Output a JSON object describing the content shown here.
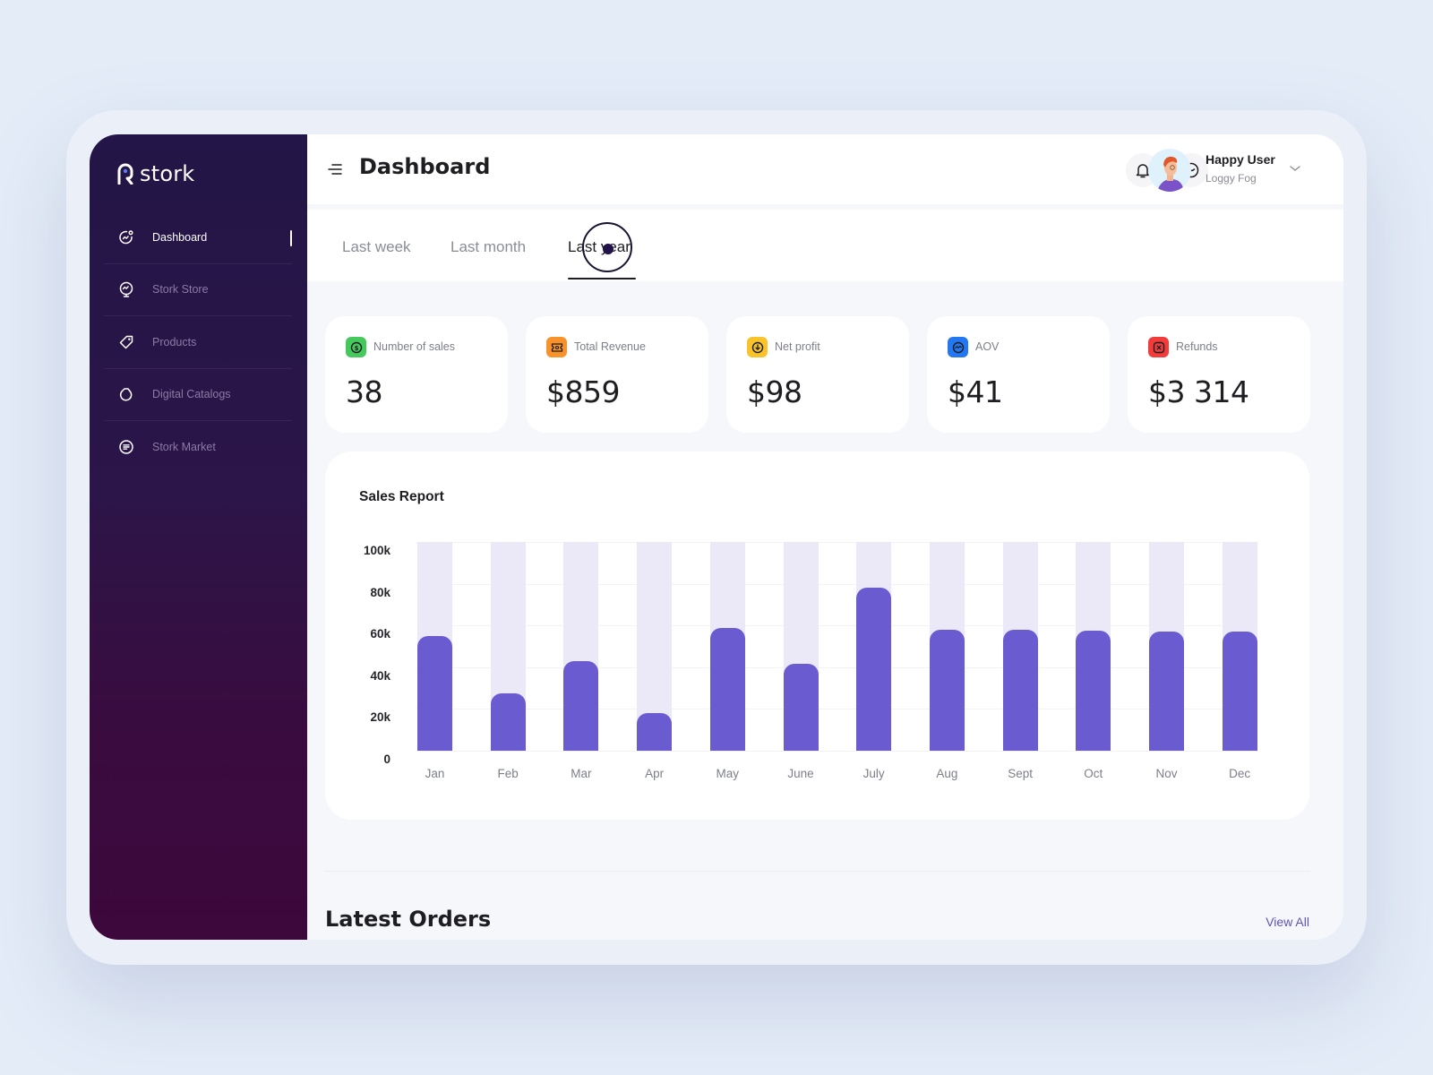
{
  "app": {
    "name": "stork"
  },
  "sidebar": {
    "items": [
      {
        "label": "Dashboard",
        "icon": "chart-face-icon",
        "active": true
      },
      {
        "label": "Stork Store",
        "icon": "monitor-chart-icon",
        "active": false
      },
      {
        "label": "Products",
        "icon": "tag-icon",
        "active": false
      },
      {
        "label": "Digital Catalogs",
        "icon": "catalog-icon",
        "active": false
      },
      {
        "label": "Stork Market",
        "icon": "list-circle-icon",
        "active": false
      }
    ]
  },
  "header": {
    "title": "Dashboard",
    "user": {
      "name": "Happy User",
      "subtitle": "Loggy Fog"
    }
  },
  "tabs": [
    {
      "label": "Last week",
      "active": false
    },
    {
      "label": "Last month",
      "active": false
    },
    {
      "label": "Last year",
      "active": true
    }
  ],
  "stats": [
    {
      "label": "Number of sales",
      "value": "38",
      "color": "#46c95c",
      "icon": "dollar-coin-icon"
    },
    {
      "label": "Total Revenue",
      "value": "$859",
      "color": "#f7932a",
      "icon": "ticket-icon"
    },
    {
      "label": "Net profit",
      "value": "$98",
      "color": "#f9c42b",
      "icon": "download-circle-icon"
    },
    {
      "label": "AOV",
      "value": "$41",
      "color": "#2377f0",
      "icon": "pulse-circle-icon"
    },
    {
      "label": "Refunds",
      "value": "$3 314",
      "color": "#f23b3b",
      "icon": "close-square-icon"
    }
  ],
  "chart_data": {
    "type": "bar",
    "title": "Sales Report",
    "categories": [
      "Jan",
      "Feb",
      "Mar",
      "Apr",
      "May",
      "June",
      "July",
      "Aug",
      "Sept",
      "Oct",
      "Nov",
      "Dec"
    ],
    "values": [
      55000,
      27500,
      43000,
      18000,
      59000,
      41500,
      78000,
      58000,
      58000,
      57500,
      57000,
      57000
    ],
    "yticks": [
      "100k",
      "80k",
      "60k",
      "40k",
      "20k",
      "0"
    ],
    "ylim": [
      0,
      100000
    ],
    "xlabel": "",
    "ylabel": "",
    "grid": true,
    "colors": {
      "bar": "#6a5bd0",
      "track": "#ebe9f8"
    }
  },
  "orders": {
    "title": "Latest Orders",
    "view_all": "View All"
  }
}
